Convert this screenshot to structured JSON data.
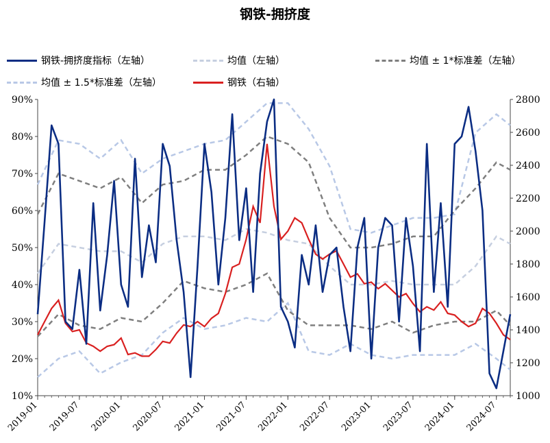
{
  "chart_data": {
    "type": "line",
    "title": "钢铁-拥挤度",
    "colors": {
      "crowd": "#0b2d83",
      "mean": "#c6cfe0",
      "band1": "#7f7f7f",
      "band15": "#b8c8e6",
      "steel": "#d92020"
    },
    "left_axis": {
      "ylim": [
        0.1,
        0.9
      ],
      "ticks": [
        "10%",
        "20%",
        "30%",
        "40%",
        "50%",
        "60%",
        "70%",
        "80%",
        "90%"
      ]
    },
    "right_axis": {
      "ylim": [
        1000,
        2800
      ],
      "ticks": [
        "1000",
        "1200",
        "1400",
        "1600",
        "1800",
        "2000",
        "2200",
        "2400",
        "2600",
        "2800"
      ]
    },
    "x_range": [
      "2019-01",
      "2024-09"
    ],
    "x_ticks": [
      "2019-01",
      "2019-07",
      "2020-01",
      "2020-07",
      "2021-01",
      "2021-07",
      "2022-01",
      "2022-07",
      "2023-01",
      "2023-07",
      "2024-01",
      "2024-07"
    ],
    "legend": [
      {
        "key": "crowd",
        "label": "钢铁-拥挤度指标（左轴）"
      },
      {
        "key": "mean",
        "label": "均值（左轴）"
      },
      {
        "key": "band1",
        "label": "均值 ± 1*标准差（左轴）"
      },
      {
        "key": "band15",
        "label": "均值 ± 1.5*标准差（左轴）"
      },
      {
        "key": "steel",
        "label": "钢铁（右轴）"
      }
    ],
    "series": [
      {
        "key": "crowd",
        "name": "钢铁-拥挤度指标（左轴）",
        "axis": "left",
        "x": [
          "2019-01",
          "2019-02",
          "2019-03",
          "2019-04",
          "2019-05",
          "2019-06",
          "2019-07",
          "2019-08",
          "2019-09",
          "2019-10",
          "2019-11",
          "2019-12",
          "2020-01",
          "2020-02",
          "2020-03",
          "2020-04",
          "2020-05",
          "2020-06",
          "2020-07",
          "2020-08",
          "2020-09",
          "2020-10",
          "2020-11",
          "2020-12",
          "2021-01",
          "2021-02",
          "2021-03",
          "2021-04",
          "2021-05",
          "2021-06",
          "2021-07",
          "2021-08",
          "2021-09",
          "2021-10",
          "2021-11",
          "2021-12",
          "2022-01",
          "2022-02",
          "2022-03",
          "2022-04",
          "2022-05",
          "2022-06",
          "2022-07",
          "2022-08",
          "2022-09",
          "2022-10",
          "2022-11",
          "2022-12",
          "2023-01",
          "2023-02",
          "2023-03",
          "2023-04",
          "2023-05",
          "2023-06",
          "2023-07",
          "2023-08",
          "2023-09",
          "2023-10",
          "2023-11",
          "2023-12",
          "2024-01",
          "2024-02",
          "2024-03",
          "2024-04",
          "2024-05",
          "2024-06",
          "2024-07",
          "2024-08",
          "2024-09"
        ],
        "values": [
          0.32,
          0.57,
          0.83,
          0.78,
          0.3,
          0.28,
          0.44,
          0.24,
          0.62,
          0.33,
          0.48,
          0.68,
          0.4,
          0.34,
          0.74,
          0.42,
          0.56,
          0.46,
          0.78,
          0.72,
          0.52,
          0.38,
          0.15,
          0.45,
          0.78,
          0.65,
          0.4,
          0.58,
          0.86,
          0.52,
          0.66,
          0.38,
          0.7,
          0.84,
          0.9,
          0.34,
          0.3,
          0.23,
          0.48,
          0.4,
          0.56,
          0.38,
          0.48,
          0.5,
          0.34,
          0.22,
          0.5,
          0.58,
          0.2,
          0.5,
          0.58,
          0.56,
          0.3,
          0.58,
          0.45,
          0.22,
          0.78,
          0.38,
          0.62,
          0.34,
          0.78,
          0.8,
          0.88,
          0.76,
          0.6,
          0.16,
          0.12,
          0.22,
          0.32
        ]
      },
      {
        "key": "mean",
        "name": "均值（左轴）",
        "axis": "left",
        "x": [
          "2019-01",
          "2019-04",
          "2019-07",
          "2019-10",
          "2020-01",
          "2020-04",
          "2020-07",
          "2020-10",
          "2021-01",
          "2021-04",
          "2021-07",
          "2021-10",
          "2022-01",
          "2022-04",
          "2022-07",
          "2022-10",
          "2023-01",
          "2023-04",
          "2023-07",
          "2023-10",
          "2024-01",
          "2024-04",
          "2024-07",
          "2024-09"
        ],
        "values": [
          0.43,
          0.51,
          0.5,
          0.49,
          0.49,
          0.46,
          0.51,
          0.53,
          0.53,
          0.52,
          0.55,
          0.54,
          0.52,
          0.51,
          0.45,
          0.4,
          0.4,
          0.41,
          0.4,
          0.4,
          0.4,
          0.45,
          0.53,
          0.51
        ]
      },
      {
        "key": "band1",
        "name": "均值 ± 1*标准差（左轴）",
        "axis": "left",
        "band": true,
        "x": [
          "2019-01",
          "2019-04",
          "2019-07",
          "2019-10",
          "2020-01",
          "2020-04",
          "2020-07",
          "2020-10",
          "2021-01",
          "2021-04",
          "2021-07",
          "2021-10",
          "2022-01",
          "2022-04",
          "2022-07",
          "2022-10",
          "2023-01",
          "2023-04",
          "2023-07",
          "2023-10",
          "2024-01",
          "2024-04",
          "2024-07",
          "2024-09"
        ],
        "upper": [
          0.59,
          0.7,
          0.68,
          0.66,
          0.69,
          0.62,
          0.67,
          0.68,
          0.71,
          0.71,
          0.75,
          0.8,
          0.78,
          0.73,
          0.58,
          0.5,
          0.5,
          0.51,
          0.53,
          0.53,
          0.6,
          0.66,
          0.73,
          0.71
        ],
        "lower": [
          0.26,
          0.32,
          0.29,
          0.28,
          0.31,
          0.3,
          0.35,
          0.41,
          0.39,
          0.38,
          0.4,
          0.43,
          0.33,
          0.29,
          0.29,
          0.29,
          0.28,
          0.3,
          0.27,
          0.29,
          0.3,
          0.3,
          0.33,
          0.29
        ]
      },
      {
        "key": "band15",
        "name": "均值 ± 1.5*标准差（左轴）",
        "axis": "left",
        "band": true,
        "x": [
          "2019-01",
          "2019-04",
          "2019-07",
          "2019-10",
          "2020-01",
          "2020-04",
          "2020-07",
          "2020-10",
          "2021-01",
          "2021-04",
          "2021-07",
          "2021-10",
          "2022-01",
          "2022-04",
          "2022-07",
          "2022-10",
          "2023-01",
          "2023-04",
          "2023-07",
          "2023-10",
          "2024-01",
          "2024-04",
          "2024-07",
          "2024-09"
        ],
        "upper": [
          0.67,
          0.79,
          0.78,
          0.74,
          0.79,
          0.7,
          0.74,
          0.76,
          0.78,
          0.79,
          0.84,
          0.89,
          0.89,
          0.82,
          0.72,
          0.55,
          0.54,
          0.56,
          0.58,
          0.58,
          0.59,
          0.81,
          0.86,
          0.83
        ],
        "lower": [
          0.15,
          0.2,
          0.22,
          0.16,
          0.19,
          0.21,
          0.27,
          0.31,
          0.28,
          0.29,
          0.31,
          0.3,
          0.35,
          0.22,
          0.21,
          0.24,
          0.21,
          0.2,
          0.21,
          0.21,
          0.21,
          0.24,
          0.2,
          0.17
        ]
      },
      {
        "key": "steel",
        "name": "钢铁（右轴）",
        "axis": "right",
        "x": [
          "2019-01",
          "2019-02",
          "2019-03",
          "2019-04",
          "2019-05",
          "2019-06",
          "2019-07",
          "2019-08",
          "2019-09",
          "2019-10",
          "2019-11",
          "2019-12",
          "2020-01",
          "2020-02",
          "2020-03",
          "2020-04",
          "2020-05",
          "2020-06",
          "2020-07",
          "2020-08",
          "2020-09",
          "2020-10",
          "2020-11",
          "2020-12",
          "2021-01",
          "2021-02",
          "2021-03",
          "2021-04",
          "2021-05",
          "2021-06",
          "2021-07",
          "2021-08",
          "2021-09",
          "2021-10",
          "2021-11",
          "2021-12",
          "2022-01",
          "2022-02",
          "2022-03",
          "2022-04",
          "2022-05",
          "2022-06",
          "2022-07",
          "2022-08",
          "2022-09",
          "2022-10",
          "2022-11",
          "2022-12",
          "2023-01",
          "2023-02",
          "2023-03",
          "2023-04",
          "2023-05",
          "2023-06",
          "2023-07",
          "2023-08",
          "2023-09",
          "2023-10",
          "2023-11",
          "2023-12",
          "2024-01",
          "2024-02",
          "2024-03",
          "2024-04",
          "2024-05",
          "2024-06",
          "2024-07",
          "2024-08",
          "2024-09"
        ],
        "values": [
          1370,
          1450,
          1530,
          1580,
          1440,
          1390,
          1400,
          1320,
          1300,
          1270,
          1300,
          1310,
          1350,
          1250,
          1260,
          1240,
          1240,
          1280,
          1330,
          1320,
          1380,
          1430,
          1420,
          1450,
          1420,
          1470,
          1500,
          1620,
          1780,
          1800,
          1950,
          2150,
          2050,
          2530,
          2150,
          1950,
          2000,
          2080,
          2050,
          1950,
          1860,
          1830,
          1860,
          1880,
          1800,
          1720,
          1740,
          1680,
          1690,
          1650,
          1680,
          1640,
          1600,
          1620,
          1560,
          1510,
          1540,
          1520,
          1570,
          1500,
          1490,
          1450,
          1420,
          1440,
          1530,
          1500,
          1440,
          1370,
          1340
        ]
      }
    ]
  }
}
